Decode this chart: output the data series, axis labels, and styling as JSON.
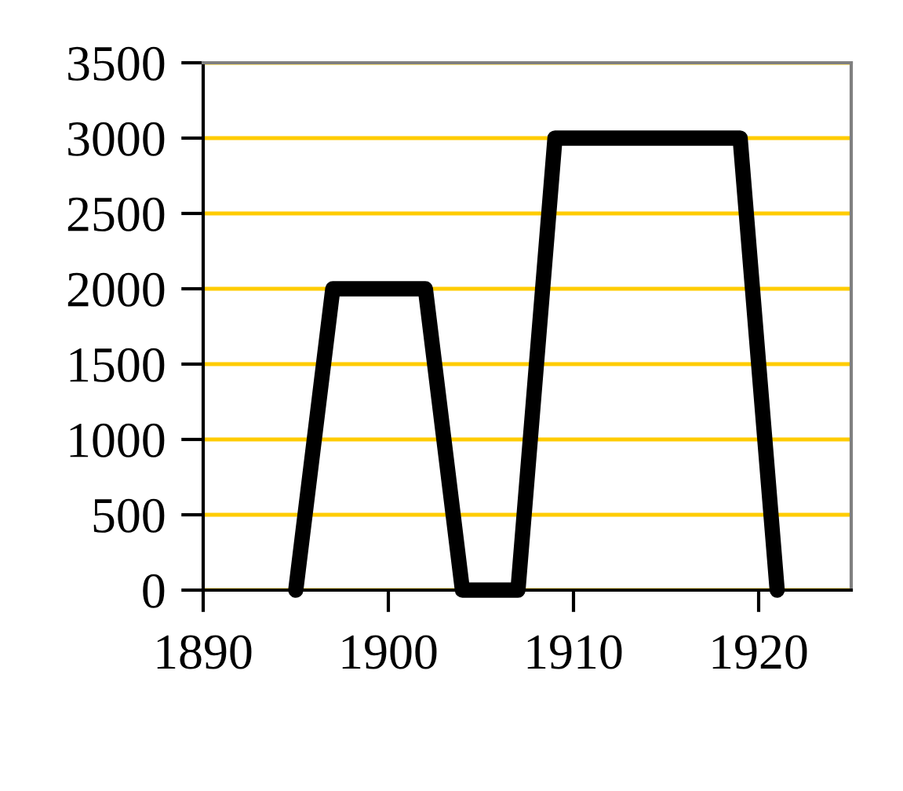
{
  "chart_data": {
    "type": "line",
    "x": [
      1895,
      1896,
      1897,
      1902,
      1903,
      1904,
      1907,
      1909,
      1919,
      1920,
      1921
    ],
    "series": [
      {
        "color": "#000000",
        "values": [
          0,
          1000,
          2000,
          2000,
          1000,
          0,
          0,
          3000,
          3000,
          1500,
          0
        ]
      }
    ],
    "xlim": [
      1890,
      1925
    ],
    "xticks": [
      1890,
      1900,
      1910,
      1920
    ],
    "ylim": [
      0,
      3500
    ],
    "yticks": [
      0,
      500,
      1000,
      1500,
      2000,
      2500,
      3000,
      3500
    ],
    "grid": "y",
    "line_style": "solid",
    "legend": false
  }
}
